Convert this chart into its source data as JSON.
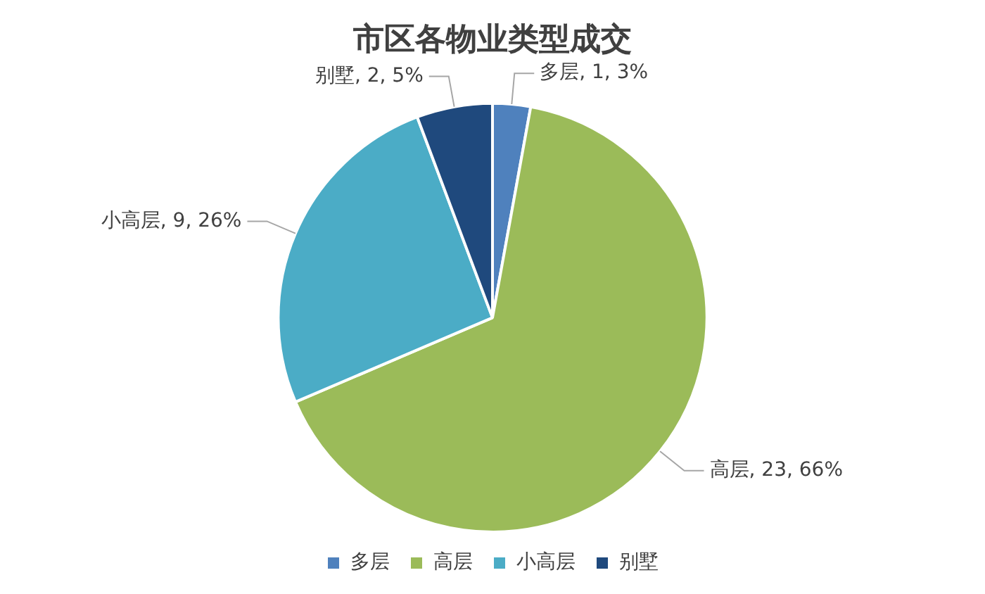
{
  "chart_data": {
    "type": "pie",
    "title": "市区各物业类型成交",
    "categories": [
      "多层",
      "高层",
      "小高层",
      "别墅"
    ],
    "values": [
      1,
      23,
      9,
      2
    ],
    "colors": [
      "#4f81bd",
      "#9bbb59",
      "#4bacc6",
      "#1f497d"
    ],
    "value_labels": [
      "多层, 1, 3%",
      "高层, 23, 66%",
      "小高层, 9, 26%",
      "别墅, 2, 5%"
    ],
    "legend": "bottom"
  }
}
